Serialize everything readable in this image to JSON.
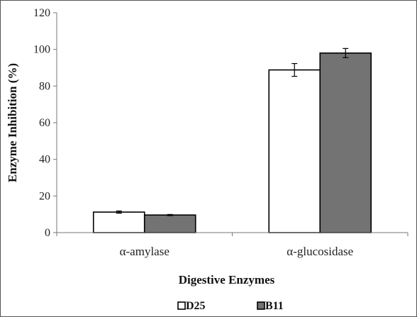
{
  "chart_data": {
    "type": "bar",
    "categories": [
      "α-amylase",
      "α-glucosidase"
    ],
    "series": [
      {
        "name": "D25",
        "values": [
          11.2,
          88.8
        ],
        "errors": [
          0.6,
          3.5
        ],
        "color": "#ffffff"
      },
      {
        "name": "B11",
        "values": [
          9.6,
          98.0
        ],
        "errors": [
          0.3,
          2.5
        ],
        "color": "#737373"
      }
    ],
    "xlabel": "Digestive Enzymes",
    "ylabel": "Enzyme Inhibition   (%)",
    "ylim": [
      0,
      120
    ],
    "yticks": [
      0,
      20,
      40,
      60,
      80,
      100,
      120
    ],
    "grid": false,
    "legend_position": "bottom"
  }
}
